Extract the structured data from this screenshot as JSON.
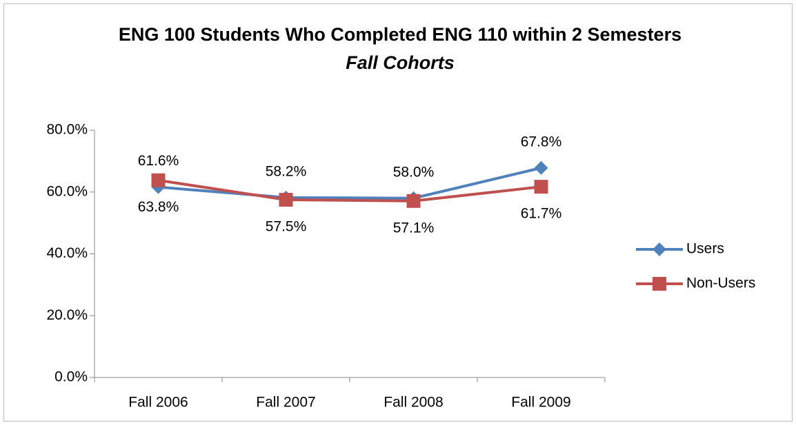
{
  "chart_data": {
    "type": "line",
    "title": "ENG 100 Students Who Completed ENG 110 within 2 Semesters",
    "subtitle": "Fall Cohorts",
    "categories": [
      "Fall 2006",
      "Fall 2007",
      "Fall 2008",
      "Fall 2009"
    ],
    "series": [
      {
        "name": "Users",
        "color": "#4f81bd",
        "values": [
          61.6,
          58.2,
          58.0,
          67.8
        ],
        "value_labels": [
          "61.6%",
          "58.2%",
          "58.0%",
          "67.8%"
        ]
      },
      {
        "name": "Non-Users",
        "color": "#c0504d",
        "values": [
          63.8,
          57.5,
          57.1,
          61.7
        ],
        "value_labels": [
          "63.8%",
          "57.5%",
          "57.1%",
          "61.7%"
        ]
      }
    ],
    "ylim": [
      0,
      80
    ],
    "yticks": [
      {
        "value": 0,
        "label": "0.0%"
      },
      {
        "value": 20,
        "label": "20.0%"
      },
      {
        "value": 40,
        "label": "40.0%"
      },
      {
        "value": 60,
        "label": "60.0%"
      },
      {
        "value": 80,
        "label": "80.0%"
      }
    ],
    "grid": false,
    "legend": "right"
  }
}
